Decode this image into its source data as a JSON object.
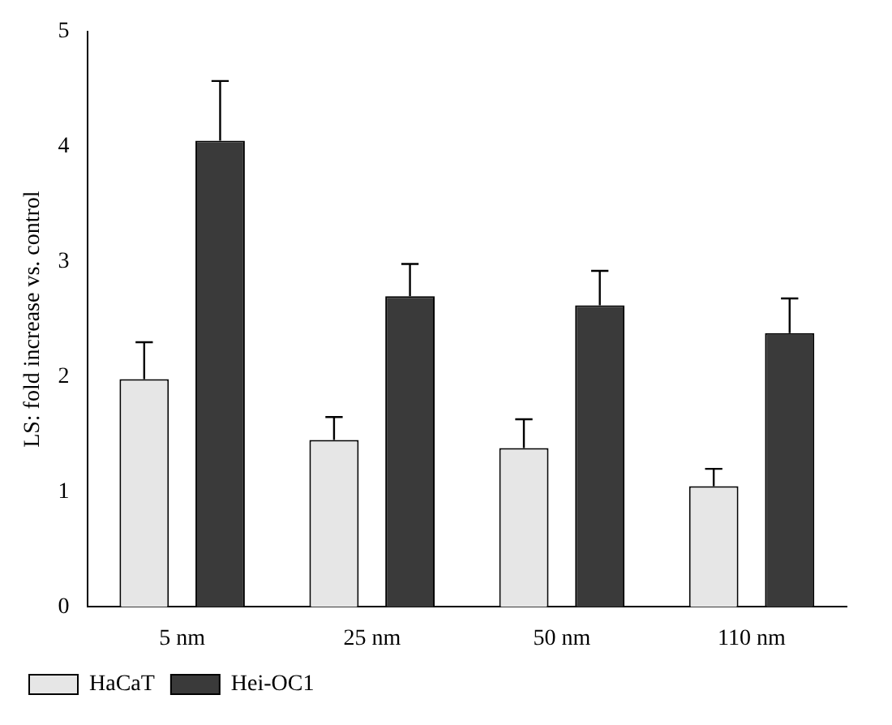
{
  "chart_data": {
    "type": "bar",
    "ylabel": "LS: fold increase vs. control",
    "categories": [
      "5 nm",
      "25 nm",
      "50 nm",
      "110 nm"
    ],
    "series": [
      {
        "name": "HaCaT",
        "color": "#e6e6e6",
        "values": [
          1.98,
          1.45,
          1.38,
          1.05
        ],
        "errors": [
          [
            1.98,
            2.3
          ],
          [
            1.45,
            1.65
          ],
          [
            1.38,
            1.63
          ],
          [
            1.05,
            1.2
          ]
        ]
      },
      {
        "name": "Hei-OC1",
        "color": "#3a3a3a",
        "values": [
          4.05,
          2.7,
          2.62,
          2.38
        ],
        "errors": [
          [
            4.05,
            4.57
          ],
          [
            2.7,
            2.98
          ],
          [
            2.62,
            2.92
          ],
          [
            2.38,
            2.68
          ]
        ]
      }
    ],
    "ylim": [
      0,
      5
    ],
    "yticks": [
      0,
      1,
      2,
      3,
      4,
      5
    ],
    "grid": false,
    "legend": "bottom"
  }
}
